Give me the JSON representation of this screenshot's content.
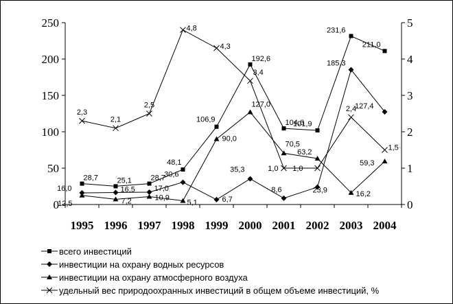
{
  "chart_data": {
    "type": "line",
    "title": "",
    "xlabel": "",
    "categories": [
      "1995",
      "1996",
      "1997",
      "1998",
      "1999",
      "2000",
      "2001",
      "2002",
      "2003",
      "2004"
    ],
    "y_left": {
      "label": "",
      "lim": [
        0,
        250
      ],
      "ticks": [
        0,
        50,
        100,
        150,
        200,
        250
      ]
    },
    "y_right": {
      "label": "",
      "lim": [
        0,
        5
      ],
      "ticks": [
        0,
        1,
        2,
        3,
        4,
        5
      ]
    },
    "grid": false,
    "legend_position": "bottom",
    "series": [
      {
        "name": "всего инвестиций",
        "axis": "left",
        "marker": "square",
        "values": [
          28.7,
          25.1,
          28.7,
          48.1,
          106.9,
          192.6,
          104.6,
          101.9,
          231.6,
          211.0
        ],
        "labels": [
          "28,7",
          "25,1",
          "28,7",
          "48,1",
          "106,9",
          "192,6",
          "104,6",
          "101,9",
          "231,6",
          "211,0"
        ]
      },
      {
        "name": "инвестиции на охрану водных ресурсов",
        "axis": "left",
        "marker": "diamond",
        "values": [
          16.0,
          16.5,
          17.0,
          30.6,
          6.7,
          35.3,
          8.6,
          23.9,
          185.3,
          127.4
        ],
        "labels": [
          "16,0",
          "16,5",
          "17,0",
          "30,6",
          "6,7",
          "35,3",
          "8,6",
          "23,9",
          "185,3",
          "127,4"
        ]
      },
      {
        "name": "инвестиции на охрану атмосферного воздуха",
        "axis": "left",
        "marker": "triangle",
        "values": [
          12.5,
          7.2,
          10.9,
          5.1,
          90.0,
          127.0,
          70.5,
          63.2,
          16.2,
          59.3
        ],
        "labels": [
          "12,5",
          "7,2",
          "10,9",
          "5,1",
          "90,0",
          "127,0",
          "70,5",
          "63,2",
          "16,2",
          "59,3"
        ]
      },
      {
        "name": "удельный вес природоохранных инвестиций в общем объеме инвестиций, %",
        "axis": "right",
        "marker": "x",
        "values": [
          2.3,
          2.1,
          2.5,
          4.8,
          4.3,
          3.4,
          1.0,
          1.0,
          2.4,
          1.5
        ],
        "labels": [
          "2,3",
          "2,1",
          "2,5",
          "4,8",
          "4,3",
          "3,4",
          "1,0",
          "1,0",
          "2,4",
          "1,5"
        ]
      }
    ]
  }
}
